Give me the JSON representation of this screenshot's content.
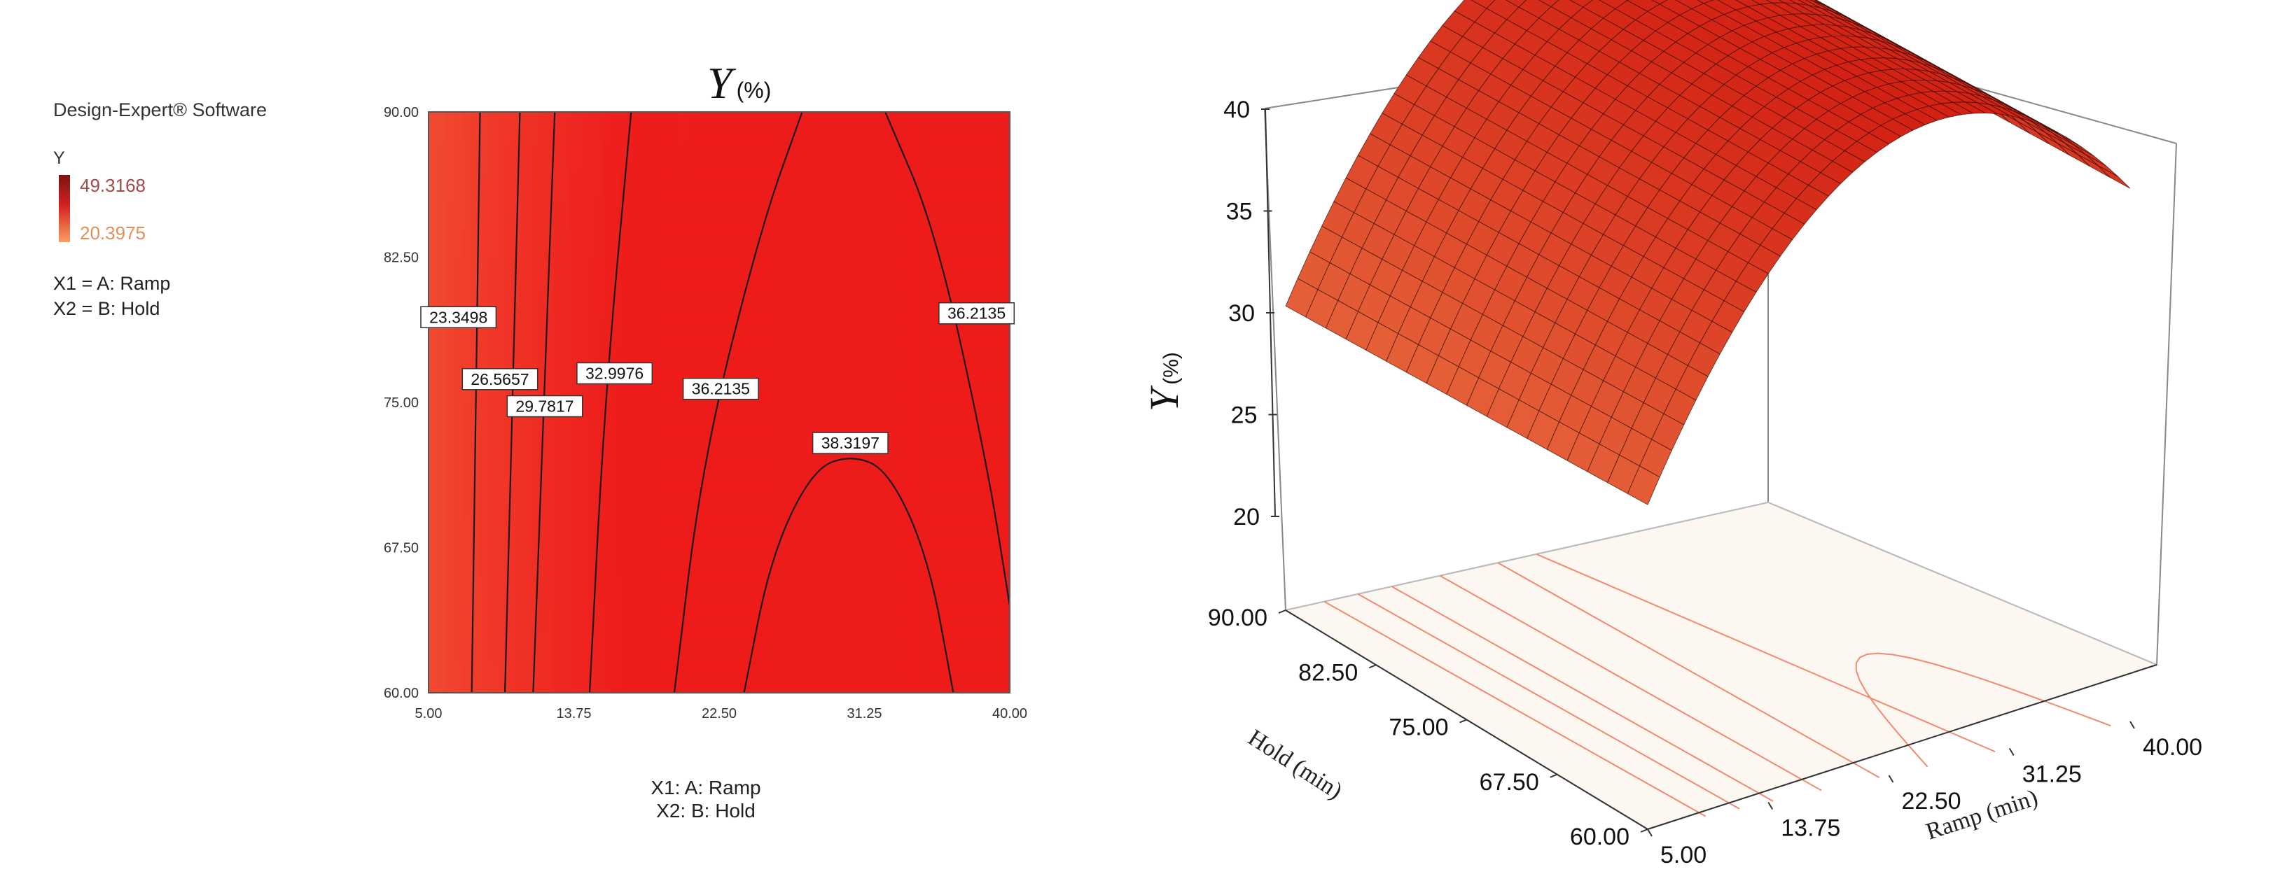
{
  "legend_panel": {
    "software": "Design-Expert® Software",
    "response": "Y",
    "high_value": "49.3168",
    "low_value": "20.3975",
    "factor1": "X1 = A: Ramp",
    "factor2": "X2 = B: Hold",
    "gradient_high_color": "#7a1414",
    "gradient_low_color": "#f7a060"
  },
  "chart_data": [
    {
      "type": "contour",
      "title_main": "Y",
      "title_unit": "(%)",
      "x_ticks": [
        "5.00",
        "13.75",
        "22.50",
        "31.25",
        "40.00"
      ],
      "y_ticks": [
        "60.00",
        "67.50",
        "75.00",
        "82.50",
        "90.00"
      ],
      "xlim": [
        5,
        40
      ],
      "ylim": [
        60,
        90
      ],
      "xlabel_line1": "X1: A: Ramp",
      "xlabel_line2": "X2: B: Hold",
      "fill_colors": {
        "low": "#f79a56",
        "high": "#ee1b1b"
      },
      "contours": [
        {
          "label": "23.3498",
          "points": [
            [
              7.6,
              60
            ],
            [
              8.1,
              90
            ]
          ],
          "label_at": [
            6.8,
            79.4
          ]
        },
        {
          "label": "26.5657",
          "points": [
            [
              9.6,
              60
            ],
            [
              10.5,
              90
            ]
          ],
          "label_at": [
            9.3,
            76.2
          ]
        },
        {
          "label": "29.7817",
          "points": [
            [
              11.3,
              60
            ],
            [
              12.6,
              90
            ]
          ],
          "label_at": [
            12.0,
            74.8
          ]
        },
        {
          "label": "32.9976",
          "points": [
            [
              14.7,
              60
            ],
            [
              15.6,
              75
            ],
            [
              17.2,
              90
            ]
          ],
          "label_at": [
            16.2,
            76.5
          ]
        },
        {
          "label": "36.2135",
          "points": [
            [
              19.8,
              60
            ],
            [
              21.5,
              72
            ],
            [
              25.0,
              84
            ],
            [
              27.5,
              90
            ]
          ],
          "label_at": [
            22.6,
            75.7
          ]
        },
        {
          "label": "36.2135",
          "points": [
            [
              32.5,
              90
            ],
            [
              35.5,
              84
            ],
            [
              38.6,
              72
            ],
            [
              40,
              64.5
            ]
          ],
          "label_at": [
            38.0,
            79.6
          ]
        },
        {
          "label": "38.3197",
          "points": [
            [
              24.0,
              60
            ],
            [
              25.6,
              67
            ],
            [
              28.1,
              71.5
            ],
            [
              30.4,
              72.3
            ],
            [
              32.7,
              71.5
            ],
            [
              35.1,
              67
            ],
            [
              36.6,
              60
            ]
          ],
          "label_at": [
            30.4,
            72.9
          ]
        }
      ]
    },
    {
      "type": "surface3d",
      "zlabel_main": "Y",
      "zlabel_unit": "(%)",
      "z_ticks": [
        "20",
        "25",
        "30",
        "35",
        "40"
      ],
      "zlim": [
        20,
        40
      ],
      "hold_ticks": [
        "60.00",
        "67.50",
        "75.00",
        "82.50",
        "90.00"
      ],
      "ramp_ticks": [
        "5.00",
        "13.75",
        "22.50",
        "31.25",
        "40.00"
      ],
      "hold_label": "Hold (min)",
      "ramp_label": "Ramp (min)",
      "surface_colors": {
        "low": "#f0884e",
        "high": "#d11a10"
      }
    }
  ]
}
